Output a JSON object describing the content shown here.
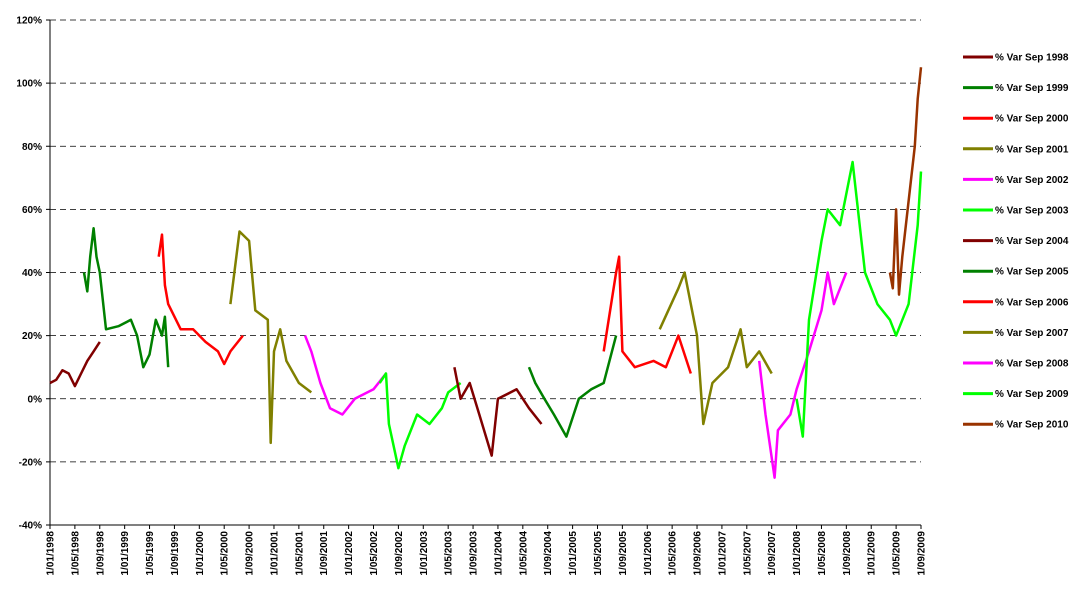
{
  "chart_data": {
    "type": "line",
    "xlim": [
      "1/01/1998",
      "1/09/2009"
    ],
    "xticks": [
      "1/01/1998",
      "1/05/1998",
      "1/09/1998",
      "1/01/1999",
      "1/05/1999",
      "1/09/1999",
      "1/01/2000",
      "1/05/2000",
      "1/09/2000",
      "1/01/2001",
      "1/05/2001",
      "1/09/2001",
      "1/01/2002",
      "1/05/2002",
      "1/09/2002",
      "1/01/2003",
      "1/05/2003",
      "1/09/2003",
      "1/01/2004",
      "1/05/2004",
      "1/09/2004",
      "1/01/2005",
      "1/05/2005",
      "1/09/2005",
      "1/01/2006",
      "1/05/2006",
      "1/09/2006",
      "1/01/2007",
      "1/05/2007",
      "1/09/2007",
      "1/01/2008",
      "1/05/2008",
      "1/09/2008",
      "1/01/2009",
      "1/05/2009",
      "1/09/2009"
    ],
    "ylim": [
      -40,
      120
    ],
    "yticks": [
      {
        "value": -40,
        "label": "-40%"
      },
      {
        "value": -20,
        "label": "-20%"
      },
      {
        "value": 0,
        "label": "0%"
      },
      {
        "value": 20,
        "label": "20%"
      },
      {
        "value": 40,
        "label": "40%"
      },
      {
        "value": 60,
        "label": "60%"
      },
      {
        "value": 80,
        "label": "80%"
      },
      {
        "value": 100,
        "label": "100%"
      },
      {
        "value": 120,
        "label": "120%"
      }
    ],
    "grid": true,
    "legend": "right",
    "series": [
      {
        "name": "% Var Sep 1998",
        "color": "#800000",
        "x": [
          "1/01/1998",
          "1/02/1998",
          "1/03/1998",
          "1/04/1998",
          "1/05/1998",
          "1/06/1998",
          "1/07/1998",
          "1/08/1998",
          "1/09/1998"
        ],
        "values": [
          5,
          6,
          9,
          8,
          4,
          8,
          12,
          15,
          18
        ]
      },
      {
        "name": "% Var Sep 1999",
        "color": "#008000",
        "x": [
          "15/06/1998",
          "1/07/1998",
          "15/07/1998",
          "1/08/1998",
          "15/08/1998",
          "1/09/1998",
          "1/10/1998",
          "1/12/1998",
          "1/02/1999",
          "1/03/1999",
          "1/04/1999",
          "1/05/1999",
          "1/06/1999",
          "1/07/1999",
          "15/07/1999",
          "1/08/1999"
        ],
        "values": [
          40,
          34,
          45,
          54,
          45,
          40,
          22,
          23,
          25,
          20,
          10,
          14,
          25,
          20,
          26,
          10
        ]
      },
      {
        "name": "% Var Sep 2000",
        "color": "#ff0000",
        "x": [
          "15/06/1999",
          "1/07/1999",
          "15/07/1999",
          "1/08/1999",
          "1/10/1999",
          "1/12/1999",
          "1/02/2000",
          "1/04/2000",
          "1/05/2000",
          "1/06/2000",
          "1/08/2000"
        ],
        "values": [
          45,
          52,
          36,
          30,
          22,
          22,
          18,
          15,
          11,
          15,
          20
        ]
      },
      {
        "name": "% Var Sep 2001",
        "color": "#808000",
        "x": [
          "1/06/2000",
          "15/07/2000",
          "1/09/2000",
          "1/10/2000",
          "1/12/2000",
          "15/12/2000",
          "1/01/2001",
          "1/02/2001",
          "1/03/2001",
          "1/05/2001",
          "1/07/2001"
        ],
        "values": [
          30,
          53,
          50,
          28,
          25,
          -14,
          15,
          22,
          12,
          5,
          2
        ]
      },
      {
        "name": "% Var Sep 2002",
        "color": "#ff00ff",
        "x": [
          "1/06/2001",
          "1/07/2001",
          "15/08/2001",
          "1/10/2001",
          "1/12/2001",
          "1/02/2002",
          "1/05/2002",
          "1/07/2002"
        ],
        "values": [
          20,
          15,
          5,
          -3,
          -5,
          0,
          3,
          8
        ]
      },
      {
        "name": "% Var Sep 2003",
        "color": "#00ff00",
        "x": [
          "1/06/2002",
          "1/07/2002",
          "15/07/2002",
          "1/09/2002",
          "1/10/2002",
          "1/12/2002",
          "1/02/2003",
          "1/04/2003",
          "1/05/2003",
          "1/07/2003"
        ],
        "values": [
          5,
          8,
          -8,
          -22,
          -15,
          -5,
          -8,
          -3,
          2,
          5
        ]
      },
      {
        "name": "% Var Sep 2004",
        "color": "#800000",
        "x": [
          "1/06/2003",
          "1/07/2003",
          "15/08/2003",
          "1/10/2003",
          "1/12/2003",
          "1/01/2004",
          "1/04/2004",
          "1/06/2004",
          "1/08/2004"
        ],
        "values": [
          10,
          0,
          5,
          -5,
          -18,
          0,
          3,
          -3,
          -8
        ]
      },
      {
        "name": "% Var Sep 2005",
        "color": "#008000",
        "x": [
          "1/06/2004",
          "1/07/2004",
          "15/08/2004",
          "1/10/2004",
          "1/12/2004",
          "1/02/2005",
          "1/04/2005",
          "1/06/2005",
          "1/08/2005"
        ],
        "values": [
          10,
          5,
          0,
          -5,
          -12,
          0,
          3,
          5,
          20
        ]
      },
      {
        "name": "% Var Sep 2006",
        "color": "#ff0000",
        "x": [
          "1/06/2005",
          "1/08/2005",
          "15/08/2005",
          "1/09/2005",
          "1/11/2005",
          "1/02/2006",
          "1/04/2006",
          "1/06/2006",
          "1/08/2006"
        ],
        "values": [
          15,
          40,
          45,
          15,
          10,
          12,
          10,
          20,
          8
        ]
      },
      {
        "name": "% Var Sep 2007",
        "color": "#808000",
        "x": [
          "1/03/2006",
          "1/06/2006",
          "1/07/2006",
          "1/09/2006",
          "1/10/2006",
          "15/11/2006",
          "1/02/2007",
          "1/04/2007",
          "1/05/2007",
          "1/07/2007",
          "1/09/2007"
        ],
        "values": [
          22,
          35,
          40,
          20,
          -8,
          5,
          10,
          22,
          10,
          15,
          8
        ]
      },
      {
        "name": "% Var Sep 2008",
        "color": "#ff00ff",
        "x": [
          "1/07/2007",
          "1/08/2007",
          "15/09/2007",
          "1/10/2007",
          "1/12/2007",
          "1/01/2008",
          "1/03/2008",
          "1/05/2008",
          "1/06/2008",
          "1/07/2008",
          "1/09/2008"
        ],
        "values": [
          12,
          -5,
          -25,
          -10,
          -5,
          3,
          15,
          28,
          40,
          30,
          40
        ]
      },
      {
        "name": "% Var Sep 2009",
        "color": "#00ff00",
        "x": [
          "1/01/2008",
          "1/02/2008",
          "1/03/2008",
          "1/05/2008",
          "1/06/2008",
          "1/08/2008",
          "1/10/2008",
          "1/12/2008",
          "1/02/2009",
          "1/04/2009",
          "1/05/2009",
          "1/07/2009",
          "15/08/2009",
          "1/09/2009"
        ],
        "values": [
          0,
          -12,
          25,
          50,
          60,
          55,
          75,
          40,
          30,
          25,
          20,
          30,
          55,
          72
        ]
      },
      {
        "name": "% Var Sep 2010",
        "color": "#993300",
        "x": [
          "1/04/2009",
          "15/04/2009",
          "1/05/2009",
          "15/05/2009",
          "1/06/2009",
          "1/08/2009",
          "15/08/2009",
          "1/09/2009"
        ],
        "values": [
          40,
          35,
          60,
          33,
          45,
          80,
          95,
          105
        ]
      }
    ]
  }
}
